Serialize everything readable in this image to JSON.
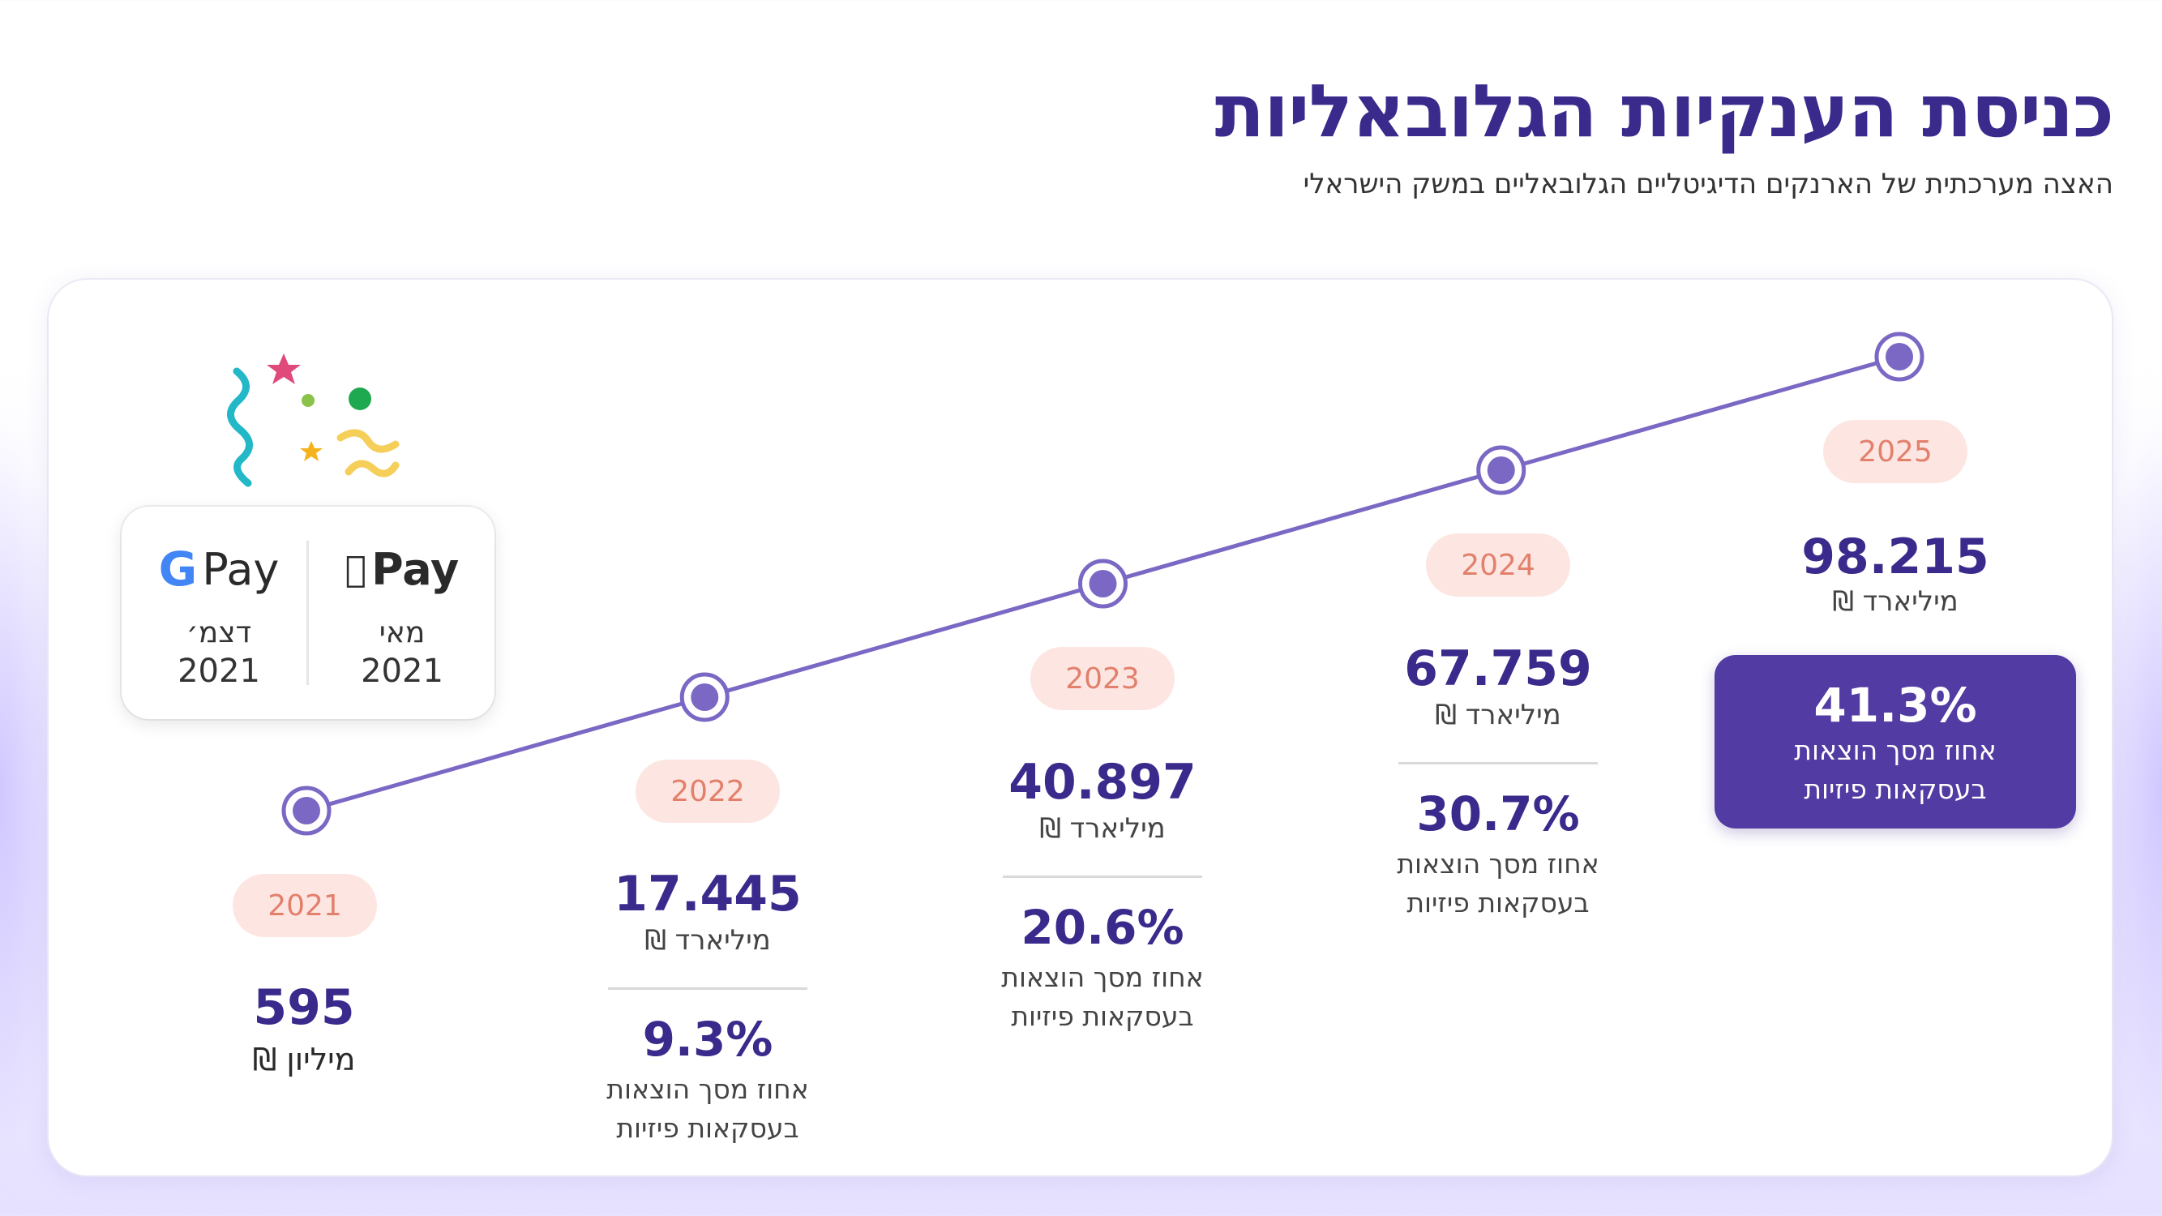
{
  "title": "כניסת הענקיות הגלובאליות",
  "subtitle": "האצה מערכתית של הארנקים הדיגיטליים הגלובאליים במשק הישראלי",
  "launches": {
    "google": {
      "brand": "Pay",
      "month": "דצמ׳",
      "year": "2021"
    },
    "apple": {
      "brand": "Pay",
      "month": "מאי",
      "year": "2021"
    }
  },
  "colors": {
    "line": "#7b68c4",
    "point": "#7b68c4",
    "accent": "#523ba2",
    "pill_bg": "#fde6e2",
    "pill_text": "#e2806c",
    "value_text": "#3a2a8c"
  },
  "chart_data": {
    "type": "line",
    "x": [
      "2021",
      "2022",
      "2023",
      "2024",
      "2025"
    ],
    "series": [
      {
        "values": [
          0.595,
          17.445,
          40.897,
          67.759,
          98.215
        ]
      }
    ],
    "value_labels": [
      "595",
      "17.445",
      "40.897",
      "67.759",
      "98.215"
    ],
    "unit_labels": [
      "מיליון ₪",
      "מיליארד ₪",
      "מיליארד ₪",
      "מיליארד ₪",
      "מיליארד ₪"
    ],
    "share_labels": [
      "",
      "9.3%",
      "20.6%",
      "30.7%",
      "41.3%"
    ],
    "share_values": [
      null,
      9.3,
      20.6,
      30.7,
      41.3
    ],
    "share_caption_line1": "אחוז מסך הוצאות",
    "share_caption_line2": "בעסקאות פיזיות",
    "title": "",
    "xlabel": "",
    "ylabel": "",
    "grid": false,
    "legend": "none"
  }
}
